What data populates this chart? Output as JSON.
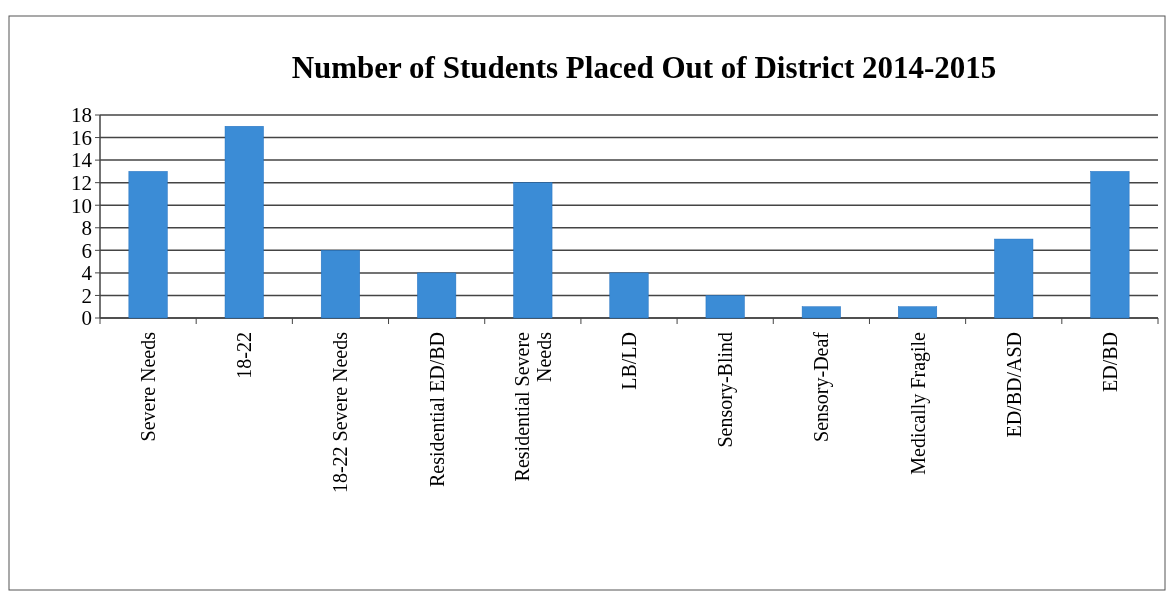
{
  "chart_data": {
    "type": "bar",
    "title": "Number of Students Placed Out of District 2014-2015",
    "categories": [
      "Severe Needs",
      "18-22",
      "18-22 Severe Needs",
      "Residential ED/BD",
      "Residential Severe Needs",
      "LB/LD",
      "Sensory-Blind",
      "Sensory-Deaf",
      "Medically Fragile",
      "ED/BD/ASD",
      "ED/BD"
    ],
    "values": [
      13,
      17,
      6,
      4,
      12,
      4,
      2,
      1,
      1,
      7,
      13
    ],
    "color": "#3b8cd6",
    "ylim": [
      0,
      18
    ],
    "yticks": [
      0,
      2,
      4,
      6,
      8,
      10,
      12,
      14,
      16,
      18
    ],
    "grid": "y"
  }
}
